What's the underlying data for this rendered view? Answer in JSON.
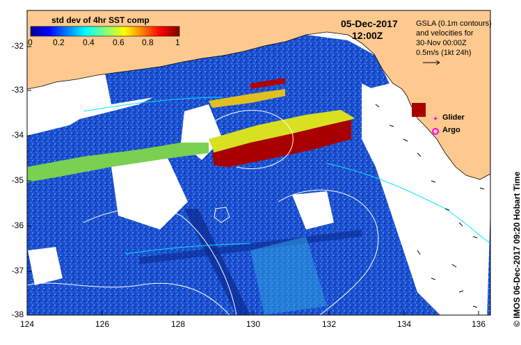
{
  "map": {
    "date": "05-Dec-2017",
    "time": "12:00Z",
    "colorbar": {
      "title": "std dev of 4hr SST comp",
      "ticks": [
        "0",
        "0.2",
        "0.4",
        "0.6",
        "0.8",
        "1"
      ]
    },
    "info": {
      "line1": "GSLA (0.1m contours)",
      "line2": "and velocities for",
      "line3": "30-Nov 00:00Z",
      "line4": "0.5m/s (1kt 24h)"
    },
    "legend": {
      "glider": "Glider",
      "argo": "Argo"
    },
    "credit": "© IMOS 06-Dec-2017 09:20 Hobart Time",
    "axes": {
      "lat_ticks": [
        "-32",
        "-33",
        "-34",
        "-35",
        "-36",
        "-37",
        "-38"
      ],
      "lon_ticks": [
        "124",
        "126",
        "128",
        "130",
        "132",
        "134",
        "136"
      ]
    },
    "colors": {
      "land": "#fdc98f",
      "ocean_low": "#1040c0",
      "ocean_high": "#a00000",
      "contour": "#ffffff",
      "current": "#00e5ff"
    }
  }
}
